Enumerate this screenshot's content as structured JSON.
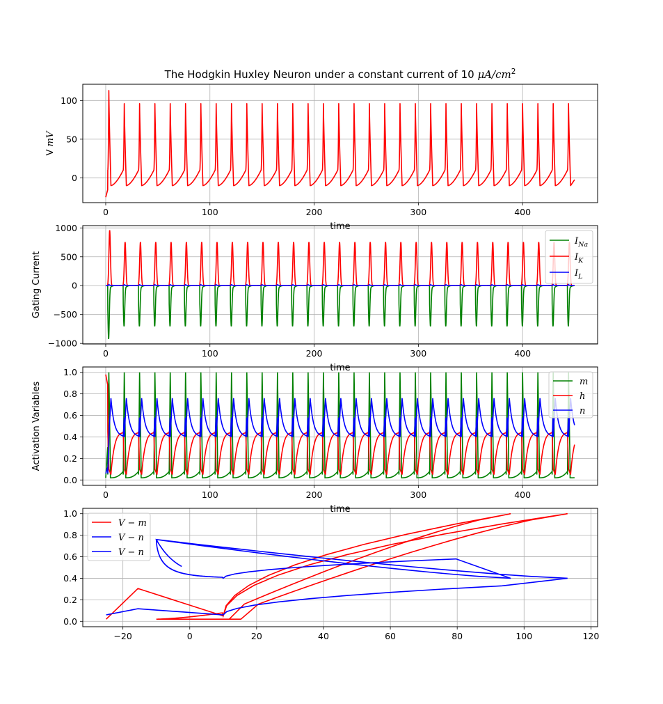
{
  "figure_title": "The Hodgkin Huxley Neuron under a constant current of 10 μA/cm²",
  "colors": {
    "red": "#ff0000",
    "green": "#008000",
    "blue": "#0000ff",
    "grid": "#b0b0b0"
  },
  "chart_data": [
    {
      "type": "line",
      "title": "The Hodgkin Huxley Neuron under a constant current of 10 μA/cm²",
      "xlabel": "time",
      "ylabel": "V mV",
      "xlim": [
        -22,
        472
      ],
      "ylim": [
        -32,
        121
      ],
      "xticks": [
        0,
        100,
        200,
        300,
        400
      ],
      "yticks": [
        0,
        50,
        100
      ],
      "grid": true,
      "series": [
        {
          "color": "#ff0000",
          "model": {
            "t_end": 450,
            "first_spike": {
              "t": 3,
              "peak": 113
            },
            "spike_times": [
              3,
              17.8,
              32.5,
              47.2,
              61.9,
              76.6,
              91.3,
              106,
              120.7,
              135.4,
              150.1,
              164.8,
              179.5,
              194.2,
              208.9,
              223.6,
              238.3,
              253,
              267.7,
              282.4,
              297.1,
              311.8,
              326.5,
              341.2,
              355.9,
              370.6,
              385.3,
              400,
              414.7,
              429.4,
              444.1
            ],
            "peak": 96,
            "trough": -10,
            "pre_threshold": 10,
            "v_start": -25,
            "v_end": -2
          }
        }
      ]
    },
    {
      "type": "line",
      "xlabel": "time",
      "ylabel": "Gating Current",
      "xlim": [
        -22,
        472
      ],
      "ylim": [
        -1010,
        1040
      ],
      "xticks": [
        0,
        100,
        200,
        300,
        400
      ],
      "yticks": [
        -1000,
        -500,
        0,
        500,
        1000
      ],
      "ytick_labels": [
        "−1000",
        "−500",
        "0",
        "500",
        "1000"
      ],
      "grid": true,
      "legend": "top-right",
      "series": [
        {
          "name": "I_Na",
          "color": "#008000",
          "spike_peak": -700,
          "first_peak": -920
        },
        {
          "name": "I_K",
          "color": "#ff0000",
          "spike_peak": 755,
          "first_peak": 960
        },
        {
          "name": "I_L",
          "color": "#0000ff",
          "range": [
            -2,
            20
          ]
        }
      ]
    },
    {
      "type": "line",
      "xlabel": "time",
      "ylabel": "Activation Variables",
      "xlim": [
        -22,
        472
      ],
      "ylim": [
        -0.05,
        1.05
      ],
      "xticks": [
        0,
        100,
        200,
        300,
        400
      ],
      "yticks": [
        0.0,
        0.2,
        0.4,
        0.6,
        0.8,
        1.0
      ],
      "ytick_labels": [
        "0.0",
        "0.2",
        "0.4",
        "0.6",
        "0.8",
        "1.0"
      ],
      "grid": true,
      "legend": "top-right",
      "series": [
        {
          "name": "m",
          "color": "#008000",
          "peak": 1.0,
          "trough": 0.02
        },
        {
          "name": "h",
          "color": "#ff0000",
          "start": 0.98,
          "peak": 0.47,
          "trough": 0.05
        },
        {
          "name": "n",
          "color": "#0000ff",
          "start": 0.06,
          "peak": 0.76,
          "trough": 0.4
        }
      ]
    },
    {
      "type": "line",
      "xlabel": "",
      "ylabel": "",
      "xlim": [
        -32,
        122
      ],
      "ylim": [
        -0.05,
        1.05
      ],
      "xticks": [
        -20,
        0,
        20,
        40,
        60,
        80,
        100,
        120
      ],
      "xtick_labels": [
        "−20",
        "0",
        "20",
        "40",
        "60",
        "80",
        "100",
        "120"
      ],
      "yticks": [
        0.0,
        0.2,
        0.4,
        0.6,
        0.8,
        1.0
      ],
      "ytick_labels": [
        "0.0",
        "0.2",
        "0.4",
        "0.6",
        "0.8",
        "1.0"
      ],
      "grid": true,
      "legend": "top-left",
      "series": [
        {
          "name": "V − m",
          "color": "#ff0000"
        },
        {
          "name": "V − n",
          "color": "#0000ff"
        },
        {
          "name": "V − n",
          "color": "#0000ff"
        }
      ]
    }
  ]
}
